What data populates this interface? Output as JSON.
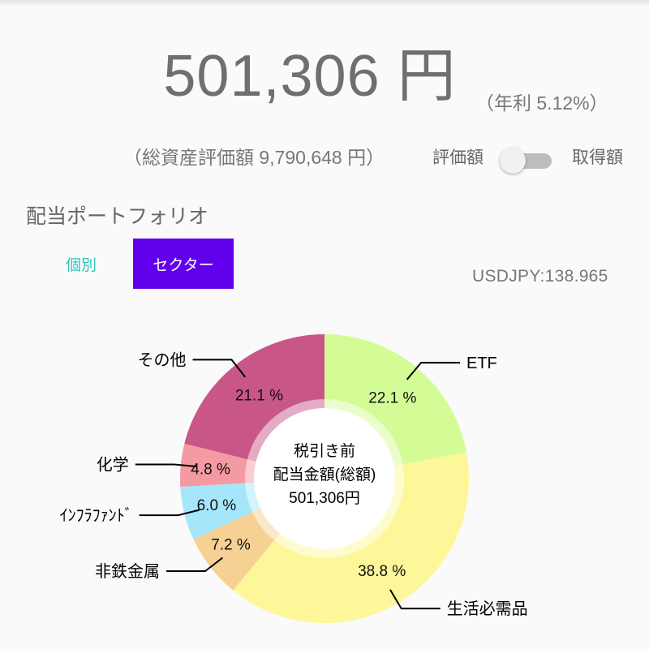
{
  "header": {
    "amount": "501,306 円",
    "annual_yield": "（年利 5.12%）",
    "total_assets": "（総資産評価額 9,790,648 円）"
  },
  "toggle": {
    "left_label": "評価額",
    "right_label": "取得額",
    "state": "off"
  },
  "section": {
    "title": "配当ポートフォリオ"
  },
  "tabs": [
    {
      "label": "個別",
      "selected": false
    },
    {
      "label": "セクター",
      "selected": true
    }
  ],
  "fx": {
    "label": "USDJPY:138.965"
  },
  "colors": {
    "accent": "#6200ee",
    "teal": "#2ec4b6"
  },
  "chart_data": {
    "type": "pie",
    "center_text": [
      "税引き前",
      "配当金額(総額)",
      "501,306円"
    ],
    "slices": [
      {
        "label": "ETF",
        "value": 22.1,
        "display": "22.1 %",
        "color": "#d4fc96"
      },
      {
        "label": "生活必需品",
        "value": 38.8,
        "display": "38.8 %",
        "color": "#fdf79a"
      },
      {
        "label": "非鉄金属",
        "value": 7.2,
        "display": "7.2 %",
        "color": "#f5d194"
      },
      {
        "label": "ｲﾝﾌﾗﾌｧﾝﾄﾞ",
        "value": 6.0,
        "display": "6.0 %",
        "color": "#a6e6fa"
      },
      {
        "label": "化学",
        "value": 4.8,
        "display": "4.8 %",
        "color": "#f49aa2"
      },
      {
        "label": "その他",
        "value": 21.1,
        "display": "21.1 %",
        "color": "#c85788"
      }
    ]
  }
}
